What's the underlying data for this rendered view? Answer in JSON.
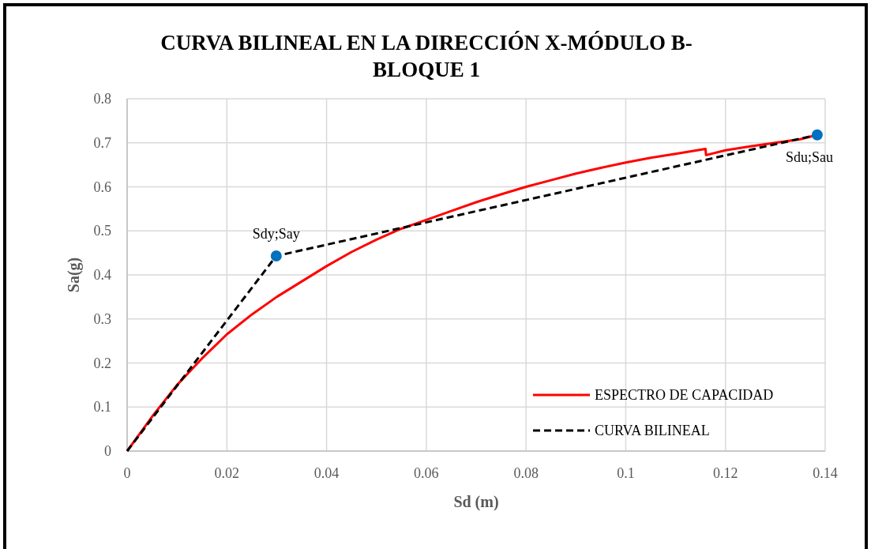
{
  "chart_data": {
    "type": "line",
    "title": "CURVA BILINEAL EN LA DIRECCIÓN X-MÓDULO B- BLOQUE 1",
    "xlabel": "Sd (m)",
    "ylabel": "Sa(g)",
    "xlim": [
      0,
      0.14
    ],
    "xticks": [
      0,
      0.02,
      0.04,
      0.06,
      0.08,
      0.1,
      0.12,
      0.14
    ],
    "ylim": [
      0,
      0.8
    ],
    "yticks": [
      0,
      0.1,
      0.2,
      0.3,
      0.4,
      0.5,
      0.6,
      0.7,
      0.8
    ],
    "grid": true,
    "legend": "bottom right",
    "series": [
      {
        "name": "ESPECTRO DE CAPACIDAD",
        "color": "#ff0000",
        "line_style": "solid",
        "marker": "none",
        "x": [
          0,
          0.005,
          0.01,
          0.015,
          0.02,
          0.025,
          0.03,
          0.035,
          0.04,
          0.045,
          0.05,
          0.055,
          0.06,
          0.065,
          0.07,
          0.075,
          0.08,
          0.085,
          0.09,
          0.095,
          0.1,
          0.105,
          0.11,
          0.116,
          0.1161,
          0.12,
          0.125,
          0.13,
          0.135,
          0.1384
        ],
        "values": [
          0,
          0.078,
          0.15,
          0.21,
          0.265,
          0.31,
          0.35,
          0.385,
          0.42,
          0.452,
          0.48,
          0.505,
          0.525,
          0.545,
          0.565,
          0.583,
          0.6,
          0.615,
          0.63,
          0.643,
          0.655,
          0.666,
          0.675,
          0.686,
          0.672,
          0.683,
          0.692,
          0.7,
          0.708,
          0.718
        ]
      },
      {
        "name": "CURVA BILINEAL",
        "color": "#000000",
        "line_style": "dashed",
        "marker": "none",
        "x": [
          0,
          0.0299,
          0.1384
        ],
        "values": [
          0,
          0.443,
          0.718
        ]
      },
      {
        "type": "scatter",
        "color": "#0070c0",
        "marker": "circle",
        "x": [
          0.0299,
          0.1384
        ],
        "values": [
          0.443,
          0.718
        ]
      }
    ],
    "annotations": [
      {
        "text": "Sdy;Say",
        "x": 0.0299,
        "y": 0.443
      },
      {
        "text": "Sdu;Sau",
        "x": 0.1384,
        "y": 0.718
      }
    ]
  }
}
